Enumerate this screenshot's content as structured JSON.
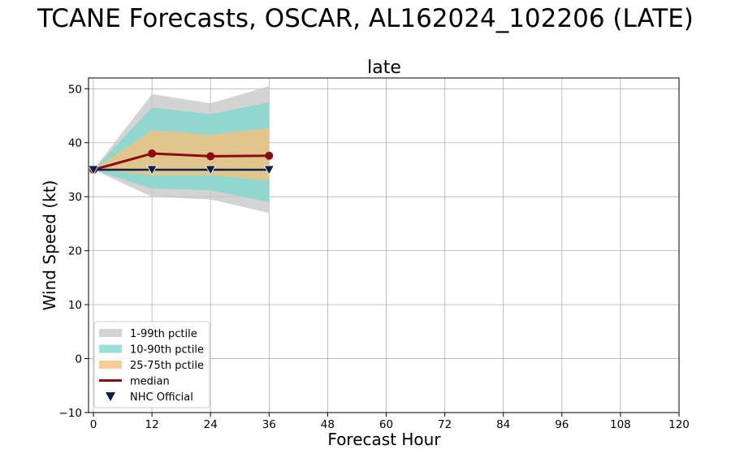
{
  "chart_data": {
    "type": "line",
    "suptitle": "TCANE Forecasts, OSCAR, AL162024_102206 (LATE)",
    "title": "late",
    "xlabel": "Forecast Hour",
    "ylabel": "Wind Speed (kt)",
    "xlim": [
      -1,
      120
    ],
    "ylim": [
      -10,
      52
    ],
    "xticks": [
      0,
      12,
      24,
      36,
      48,
      60,
      72,
      84,
      96,
      108,
      120
    ],
    "yticks": [
      -10,
      0,
      10,
      20,
      30,
      40,
      50
    ],
    "grid": true,
    "legend_position": "lower-left",
    "x": [
      0,
      12,
      24,
      36
    ],
    "bands": [
      {
        "name": "1-99th pctile",
        "color": "#c8c8c8",
        "lower": [
          35,
          30,
          29.5,
          27
        ],
        "upper": [
          35,
          49,
          47.3,
          50.5
        ]
      },
      {
        "name": "10-90th pctile",
        "color": "#7fd8cf",
        "lower": [
          35,
          31.5,
          31.2,
          29
        ],
        "upper": [
          35,
          46.5,
          45.3,
          47.5
        ]
      },
      {
        "name": "25-75th pctile",
        "color": "#f4c27a",
        "lower": [
          35,
          34,
          34,
          33
        ],
        "upper": [
          35,
          42.3,
          41.5,
          42.7
        ]
      }
    ],
    "series": [
      {
        "name": "median",
        "color": "#8b0a14",
        "marker": "circle",
        "values": [
          35,
          38,
          37.5,
          37.6
        ]
      },
      {
        "name": "NHC Official",
        "color": "#0d1f4a",
        "marker": "triangle-down",
        "values": [
          35,
          35,
          35,
          35
        ]
      }
    ]
  }
}
